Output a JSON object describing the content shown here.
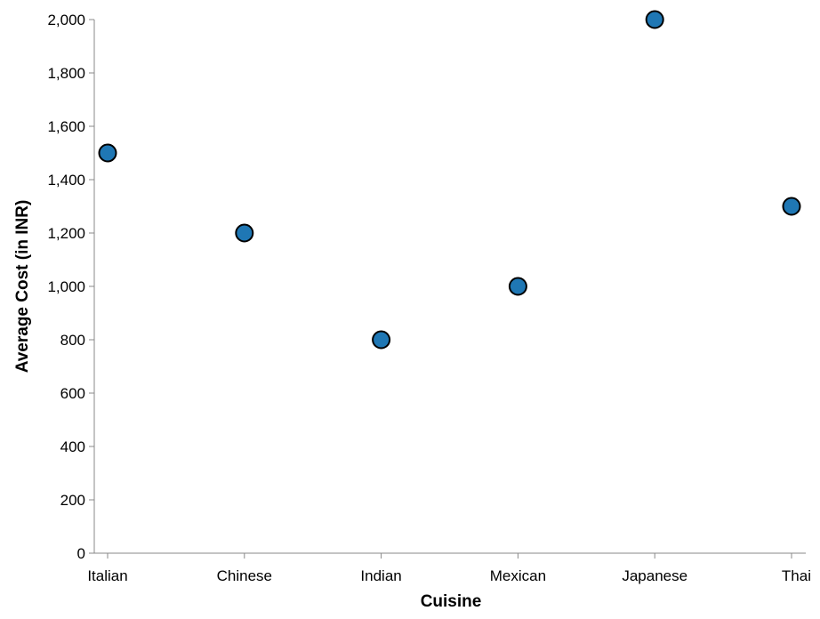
{
  "chart_data": {
    "type": "scatter",
    "xlabel": "Cuisine",
    "ylabel": "Average Cost (in INR)",
    "categories": [
      "Italian",
      "Chinese",
      "Indian",
      "Mexican",
      "Japanese",
      "Thai"
    ],
    "series": [
      {
        "values": [
          1500,
          1200,
          800,
          1000,
          2000,
          1300
        ]
      }
    ],
    "ylim": [
      0,
      2000
    ],
    "yticks": [
      0,
      200,
      400,
      600,
      800,
      1000,
      1200,
      1400,
      1600,
      1800,
      2000
    ],
    "ytick_labels": [
      "0",
      "200",
      "400",
      "600",
      "800",
      "1,000",
      "1,200",
      "1,400",
      "1,600",
      "1,800",
      "2,000"
    ],
    "grid": false,
    "legend": "none",
    "point_color": "#1f77b4",
    "point_stroke": "#000000",
    "axis_color": "#888888"
  }
}
